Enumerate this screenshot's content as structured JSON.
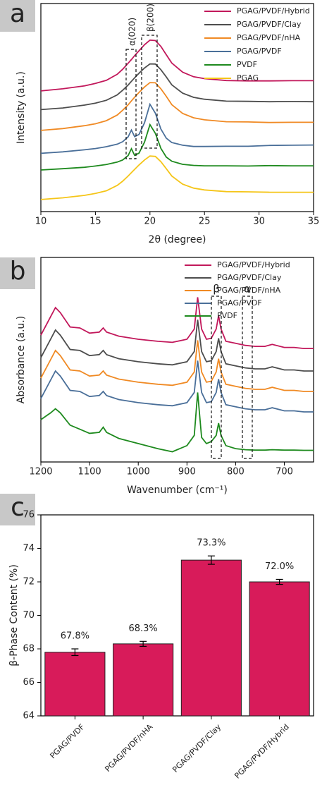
{
  "chart_data": [
    {
      "type": "line",
      "panel_label": "a",
      "x_label": "2θ (degree)",
      "y_label": "Intensity (a.u.)",
      "xlim": [
        10,
        35
      ],
      "xticks": [
        10,
        15,
        20,
        25,
        30,
        35
      ],
      "ylim": [
        0,
        10
      ],
      "legend": "upper right",
      "annotations": [
        "α(020)",
        "β(200)"
      ],
      "x": [
        10,
        12,
        14,
        15,
        16,
        17,
        17.5,
        18,
        18.3,
        18.6,
        19,
        19.5,
        20,
        20.5,
        21,
        21.5,
        22,
        23,
        24,
        25,
        27,
        29,
        31,
        33,
        35
      ],
      "series": [
        {
          "name": "PGAG/PVDF/Hybrid",
          "color": "#c2185b",
          "values": [
            5.8,
            5.9,
            6.04,
            6.16,
            6.31,
            6.6,
            6.84,
            7.13,
            7.31,
            7.5,
            7.73,
            8.02,
            8.24,
            8.22,
            7.94,
            7.54,
            7.14,
            6.7,
            6.48,
            6.39,
            6.3,
            6.28,
            6.28,
            6.29,
            6.29
          ]
        },
        {
          "name": "PGAG/PVDF/Clay",
          "color": "#4d4d4d",
          "values": [
            4.9,
            4.98,
            5.12,
            5.21,
            5.35,
            5.61,
            5.83,
            6.08,
            6.26,
            6.43,
            6.65,
            6.9,
            7.1,
            7.09,
            6.82,
            6.47,
            6.09,
            5.69,
            5.49,
            5.4,
            5.31,
            5.3,
            5.28,
            5.29,
            5.28
          ]
        },
        {
          "name": "PGAG/PVDF/nHA",
          "color": "#f08a24",
          "values": [
            3.9,
            3.99,
            4.13,
            4.22,
            4.37,
            4.64,
            4.87,
            5.13,
            5.32,
            5.5,
            5.73,
            5.99,
            6.2,
            6.19,
            5.9,
            5.54,
            5.14,
            4.72,
            4.51,
            4.41,
            4.32,
            4.31,
            4.28,
            4.29,
            4.29
          ]
        },
        {
          "name": "PGAG/PVDF",
          "color": "#4a6f99",
          "values": [
            2.8,
            2.87,
            2.97,
            3.03,
            3.12,
            3.24,
            3.36,
            3.59,
            3.92,
            3.6,
            3.71,
            4.27,
            5.16,
            4.73,
            3.97,
            3.53,
            3.32,
            3.19,
            3.13,
            3.13,
            3.14,
            3.14,
            3.18,
            3.19,
            3.2
          ]
        },
        {
          "name": "PVDF",
          "color": "#1e8a1e",
          "values": [
            2.0,
            2.06,
            2.13,
            2.19,
            2.26,
            2.38,
            2.48,
            2.69,
            3.02,
            2.7,
            2.81,
            3.34,
            4.18,
            3.76,
            3.04,
            2.62,
            2.42,
            2.27,
            2.22,
            2.2,
            2.2,
            2.19,
            2.21,
            2.2,
            2.2
          ]
        },
        {
          "name": "PGAG",
          "color": "#f5c518",
          "values": [
            0.58,
            0.66,
            0.78,
            0.87,
            1.0,
            1.26,
            1.46,
            1.71,
            1.87,
            2.03,
            2.24,
            2.48,
            2.67,
            2.65,
            2.4,
            2.06,
            1.71,
            1.32,
            1.13,
            1.04,
            0.96,
            0.95,
            0.93,
            0.93,
            0.93
          ]
        }
      ]
    },
    {
      "type": "line",
      "panel_label": "b",
      "x_label": "Wavenumber (cm⁻¹)",
      "y_label": "Absorbance (a.u.)",
      "xlim": [
        1200,
        640
      ],
      "xticks": [
        1200,
        1100,
        1000,
        900,
        800,
        700
      ],
      "ylim": [
        0,
        10
      ],
      "legend": "upper center",
      "annotations": [
        "β",
        "α"
      ],
      "x": [
        1200,
        1180,
        1170,
        1160,
        1140,
        1120,
        1100,
        1080,
        1072,
        1065,
        1040,
        1000,
        960,
        930,
        900,
        885,
        878,
        870,
        860,
        850,
        840,
        835,
        830,
        820,
        800,
        780,
        760,
        740,
        725,
        700,
        680,
        660,
        640
      ],
      "series": [
        {
          "name": "PGAG/PVDF/Hybrid",
          "color": "#c2185b",
          "values": [
            6.2,
            7.1,
            7.55,
            7.3,
            6.6,
            6.55,
            6.3,
            6.35,
            6.55,
            6.35,
            6.15,
            6.0,
            5.9,
            5.85,
            6.0,
            6.5,
            8.05,
            6.5,
            6.0,
            6.05,
            6.5,
            7.15,
            6.5,
            5.9,
            5.8,
            5.7,
            5.65,
            5.65,
            5.75,
            5.6,
            5.6,
            5.55,
            5.55
          ]
        },
        {
          "name": "PGAG/PVDF/Clay",
          "color": "#4d4d4d",
          "values": [
            5.1,
            6.0,
            6.45,
            6.2,
            5.5,
            5.45,
            5.2,
            5.25,
            5.45,
            5.25,
            5.05,
            4.9,
            4.8,
            4.75,
            4.9,
            5.4,
            6.95,
            5.4,
            4.9,
            4.95,
            5.4,
            6.05,
            5.4,
            4.8,
            4.7,
            4.6,
            4.55,
            4.55,
            4.65,
            4.5,
            4.5,
            4.45,
            4.45
          ]
        },
        {
          "name": "PGAG/PVDF/nHA",
          "color": "#f08a24",
          "values": [
            4.1,
            5.0,
            5.45,
            5.2,
            4.5,
            4.45,
            4.2,
            4.25,
            4.45,
            4.25,
            4.05,
            3.9,
            3.8,
            3.75,
            3.9,
            4.4,
            5.95,
            4.4,
            3.9,
            3.95,
            4.4,
            5.05,
            4.4,
            3.8,
            3.7,
            3.6,
            3.55,
            3.55,
            3.65,
            3.5,
            3.5,
            3.45,
            3.45
          ]
        },
        {
          "name": "PGAG/PVDF",
          "color": "#4a6f99",
          "values": [
            3.1,
            4.0,
            4.45,
            4.2,
            3.5,
            3.45,
            3.2,
            3.25,
            3.45,
            3.25,
            3.05,
            2.9,
            2.8,
            2.75,
            2.9,
            3.4,
            4.95,
            3.4,
            2.9,
            2.95,
            3.4,
            4.05,
            3.4,
            2.8,
            2.7,
            2.6,
            2.55,
            2.55,
            2.65,
            2.5,
            2.5,
            2.45,
            2.45
          ]
        },
        {
          "name": "PVDF",
          "color": "#1e8a1e",
          "values": [
            2.07,
            2.4,
            2.6,
            2.4,
            1.8,
            1.6,
            1.4,
            1.45,
            1.7,
            1.45,
            1.15,
            0.9,
            0.65,
            0.5,
            0.8,
            1.3,
            3.4,
            1.2,
            0.9,
            1.0,
            1.3,
            1.9,
            1.3,
            0.8,
            0.65,
            0.6,
            0.58,
            0.58,
            0.6,
            0.58,
            0.58,
            0.57,
            0.57
          ]
        }
      ]
    },
    {
      "type": "bar",
      "panel_label": "c",
      "y_label": "β-Phase Content (%)",
      "categories": [
        "PGAG/PVDF",
        "PGAG/PVDF/nHA",
        "PGAG/PVDF/Clay",
        "PGAG/PVDF/Hybrid"
      ],
      "values": [
        67.8,
        68.3,
        73.3,
        72.0
      ],
      "value_labels": [
        "67.8%",
        "68.3%",
        "73.3%",
        "72.0%"
      ],
      "errors": [
        0.2,
        0.15,
        0.25,
        0.15
      ],
      "color": "#d81b5a",
      "ylim": [
        64,
        76
      ],
      "yticks": [
        64,
        66,
        68,
        70,
        72,
        74,
        76
      ]
    }
  ]
}
